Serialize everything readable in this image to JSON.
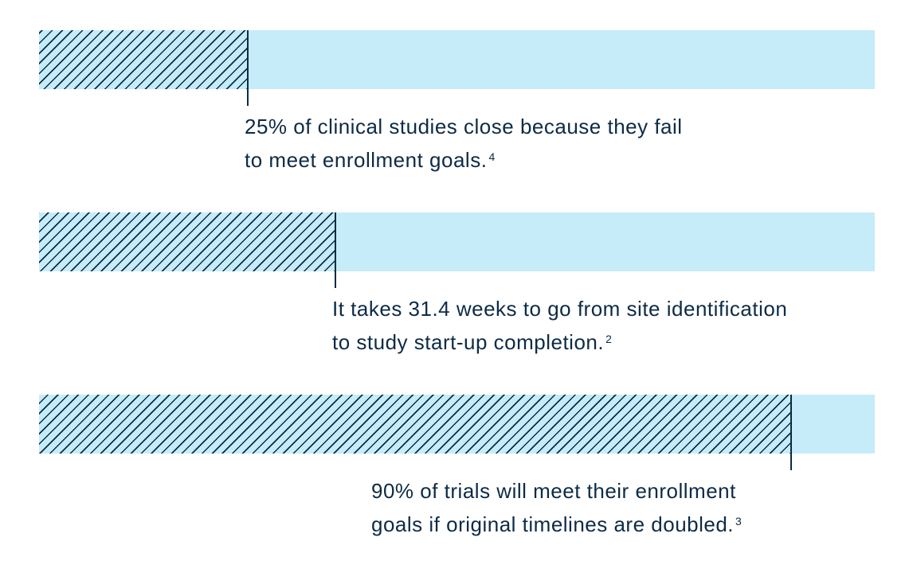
{
  "colors": {
    "track": "#c6ecf9",
    "hatch": "#0d2b45",
    "text": "#0d2b45"
  },
  "chart_data": {
    "type": "bar",
    "orientation": "horizontal",
    "style": "hatched progress bars with annotation",
    "xlim": [
      0,
      100
    ],
    "stats": [
      {
        "value": 25,
        "line1": "25% of clinical studies close because they fail",
        "line2": "to meet enrollment goals.",
        "footnote": "4"
      },
      {
        "value": 35.5,
        "line1": "It takes 31.4 weeks to go from site identification",
        "line2": "to study start-up completion.",
        "footnote": "2"
      },
      {
        "value": 90,
        "line1": "90% of trials will meet their enrollment",
        "line2": "goals if original timelines are doubled.",
        "footnote": "3"
      }
    ]
  }
}
